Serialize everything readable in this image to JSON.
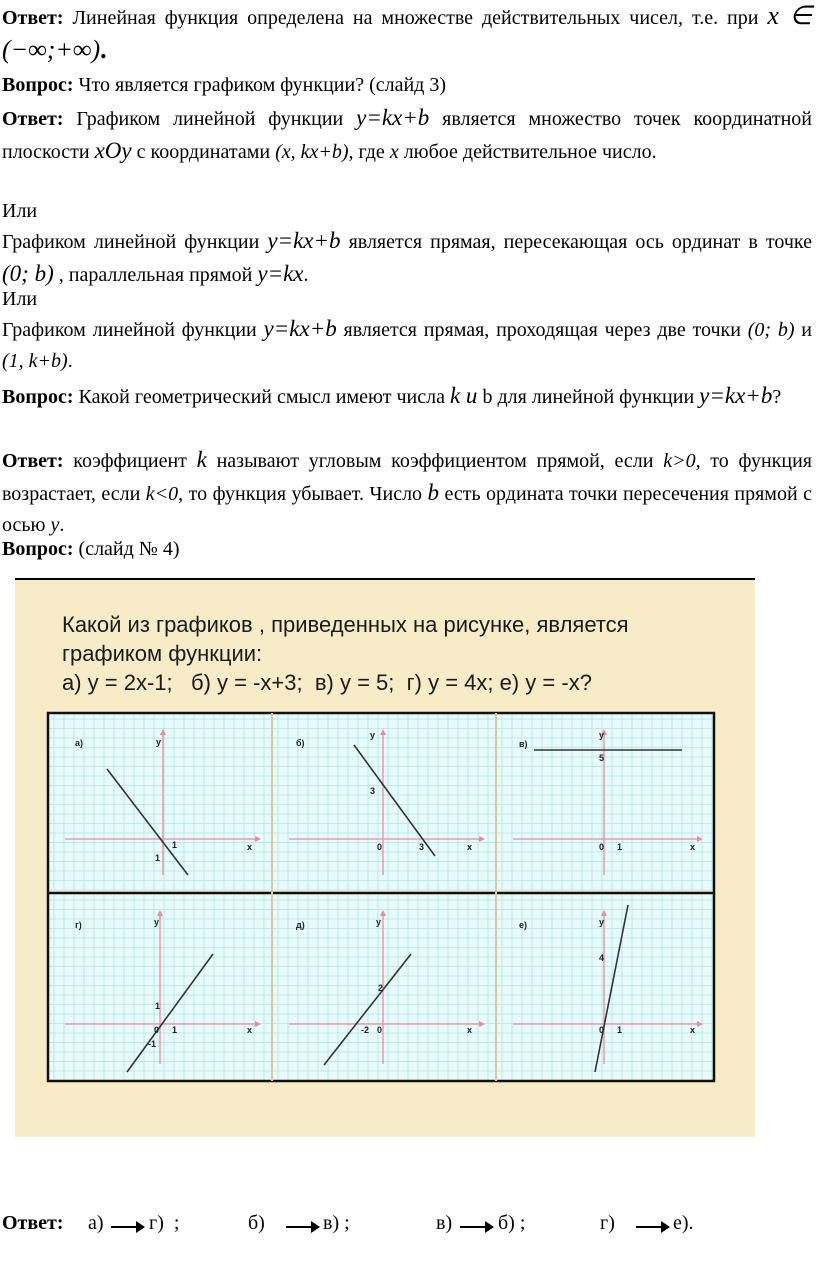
{
  "p1": {
    "label": "Ответ:",
    "text": " Линейная функция определена на множестве действительных чисел, т.е. при ",
    "formula": "x ∈ (−∞;+∞)",
    "end": "."
  },
  "p2": {
    "label": "Вопрос:",
    "text": " Что является графиком функции? (слайд  3)"
  },
  "p3": {
    "label": "Ответ:",
    "t1": " Графиком линейной функции ",
    "f1": "y=kx+b",
    "t2": " является множество точек координатной плоскости ",
    "f2": "xOy",
    "t3": " с координатами ",
    "f3": "(x,   kx+b),",
    "t4": " где ",
    "f4": "x",
    "t5": " любое действительное число."
  },
  "p4": {
    "text": "Или"
  },
  "p5": {
    "t1": "Графиком линейной функции ",
    "f1": "y=kx+b",
    "t2": " является прямая, пересекающая ось ординат в точке ",
    "f2": "(0; b)",
    "t3": " , параллельная прямой ",
    "f3": "y=kx",
    "t4": "."
  },
  "p6": {
    "text": "Или"
  },
  "p7": {
    "t1": "Графиком линейной функции ",
    "f1": "y=kx+b",
    "t2": " является прямая, проходящая через две точки ",
    "f2": "(0; b)",
    "t3": " и ",
    "f3": "(1,  k+b)",
    "t4": "."
  },
  "p8": {
    "label": "Вопрос:",
    "t1": " Какой геометрический смысл имеют числа ",
    "f1": "k и",
    "t2": " b для линейной функции ",
    "f2": "y=kx+b",
    "t3": "?"
  },
  "p9": {
    "label": "Ответ:",
    "t1": " коэффициент ",
    "f1": "k",
    "t2": " называют угловым коэффициентом  прямой, если ",
    "f2": "k>0,",
    "t3": " то функция возрастает, если ",
    "f3": "k<0",
    "t4": ", то функция убывает. Число ",
    "f4": "b",
    "t5": " есть ордината точки пересечения прямой с осью ",
    "f5": "y",
    "t6": "."
  },
  "p10": {
    "label": "Вопрос:",
    "text": "  (слайд № 4)"
  },
  "slide": {
    "title_line1": "Какой из графиков , приведенных на рисунке, является",
    "title_line2": "графиком функции:",
    "title_line3": "а) у = 2х-1;   б) у = -х+3;  в) у = 5;  г) у = 4х; е) у = -х?",
    "panels": [
      {
        "label": "а)",
        "ticks": [
          "у",
          "1",
          "1",
          "х"
        ]
      },
      {
        "label": "б)",
        "ticks": [
          "у",
          "3",
          "0",
          "3",
          "х"
        ]
      },
      {
        "label": "в)",
        "ticks": [
          "у",
          "5",
          "0",
          "1",
          "х"
        ]
      },
      {
        "label": "г)",
        "ticks": [
          "у",
          "1",
          "0",
          "1",
          "-1",
          "х"
        ]
      },
      {
        "label": "д)",
        "ticks": [
          "у",
          "2",
          "-2",
          "0",
          "х"
        ]
      },
      {
        "label": "е)",
        "ticks": [
          "у",
          "4",
          "0",
          "1",
          "х"
        ]
      }
    ]
  },
  "answer": {
    "label": "Ответ:",
    "a1": "а)",
    "a2": "г)  ;",
    "b1": "б)",
    "b2": "в) ;",
    "c1": "в)",
    "c2": "б) ;",
    "d1": "г)",
    "d2": "е)."
  }
}
